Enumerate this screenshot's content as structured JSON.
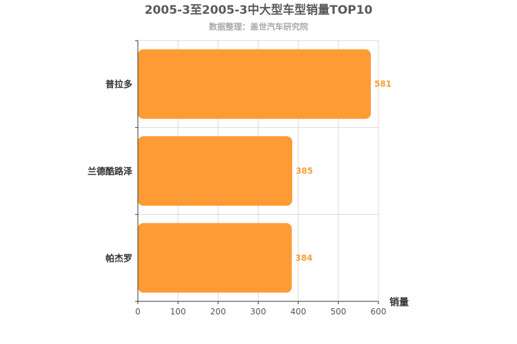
{
  "chart_data": {
    "type": "bar",
    "orientation": "horizontal",
    "title": "2005-3至2005-3中大型车型销量TOP10",
    "subtitle": "数据整理：盖世汽车研究院",
    "categories": [
      "普拉多",
      "兰德酷路泽",
      "帕杰罗"
    ],
    "values": [
      581,
      385,
      384
    ],
    "xlabel": "销量",
    "ylabel": "",
    "xlim": [
      0,
      600
    ],
    "xticks": [
      0,
      100,
      200,
      300,
      400,
      500,
      600
    ],
    "grid": true,
    "legend": "none",
    "bar_color": "#ff9b35",
    "label_color": "#f4a13b"
  }
}
